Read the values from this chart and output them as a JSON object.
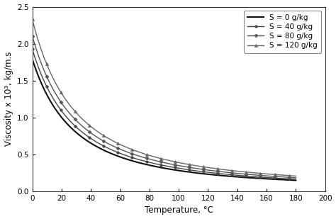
{
  "title": "",
  "xlabel": "Temperature, °C",
  "ylabel": "Viscosity x 10³, kg/m.s",
  "xlim": [
    0,
    200
  ],
  "ylim": [
    0.0,
    2.5
  ],
  "xticks": [
    0,
    20,
    40,
    60,
    80,
    100,
    120,
    140,
    160,
    180,
    200
  ],
  "yticks": [
    0.0,
    0.5,
    1.0,
    1.5,
    2.0,
    2.5
  ],
  "series": [
    {
      "label": "S = 0 g/kg",
      "S": 0,
      "color": "#111111",
      "marker": null,
      "markersize": 0,
      "lw": 1.5
    },
    {
      "label": "S = 40 g/kg",
      "S": 40,
      "color": "#444444",
      "marker": "o",
      "markersize": 2.5,
      "lw": 1.0
    },
    {
      "label": "S = 80 g/kg",
      "S": 80,
      "color": "#555555",
      "marker": "D",
      "markersize": 2.5,
      "lw": 1.0
    },
    {
      "label": "S = 120 g/kg",
      "S": 120,
      "color": "#666666",
      "marker": "^",
      "markersize": 3.0,
      "lw": 1.0
    }
  ],
  "T_range": [
    0,
    180
  ],
  "n_points": 500,
  "background_color": "#ffffff",
  "legend_loc": "upper right",
  "legend_fontsize": 7.5,
  "axis_fontsize": 8.5,
  "tick_fontsize": 7.5
}
